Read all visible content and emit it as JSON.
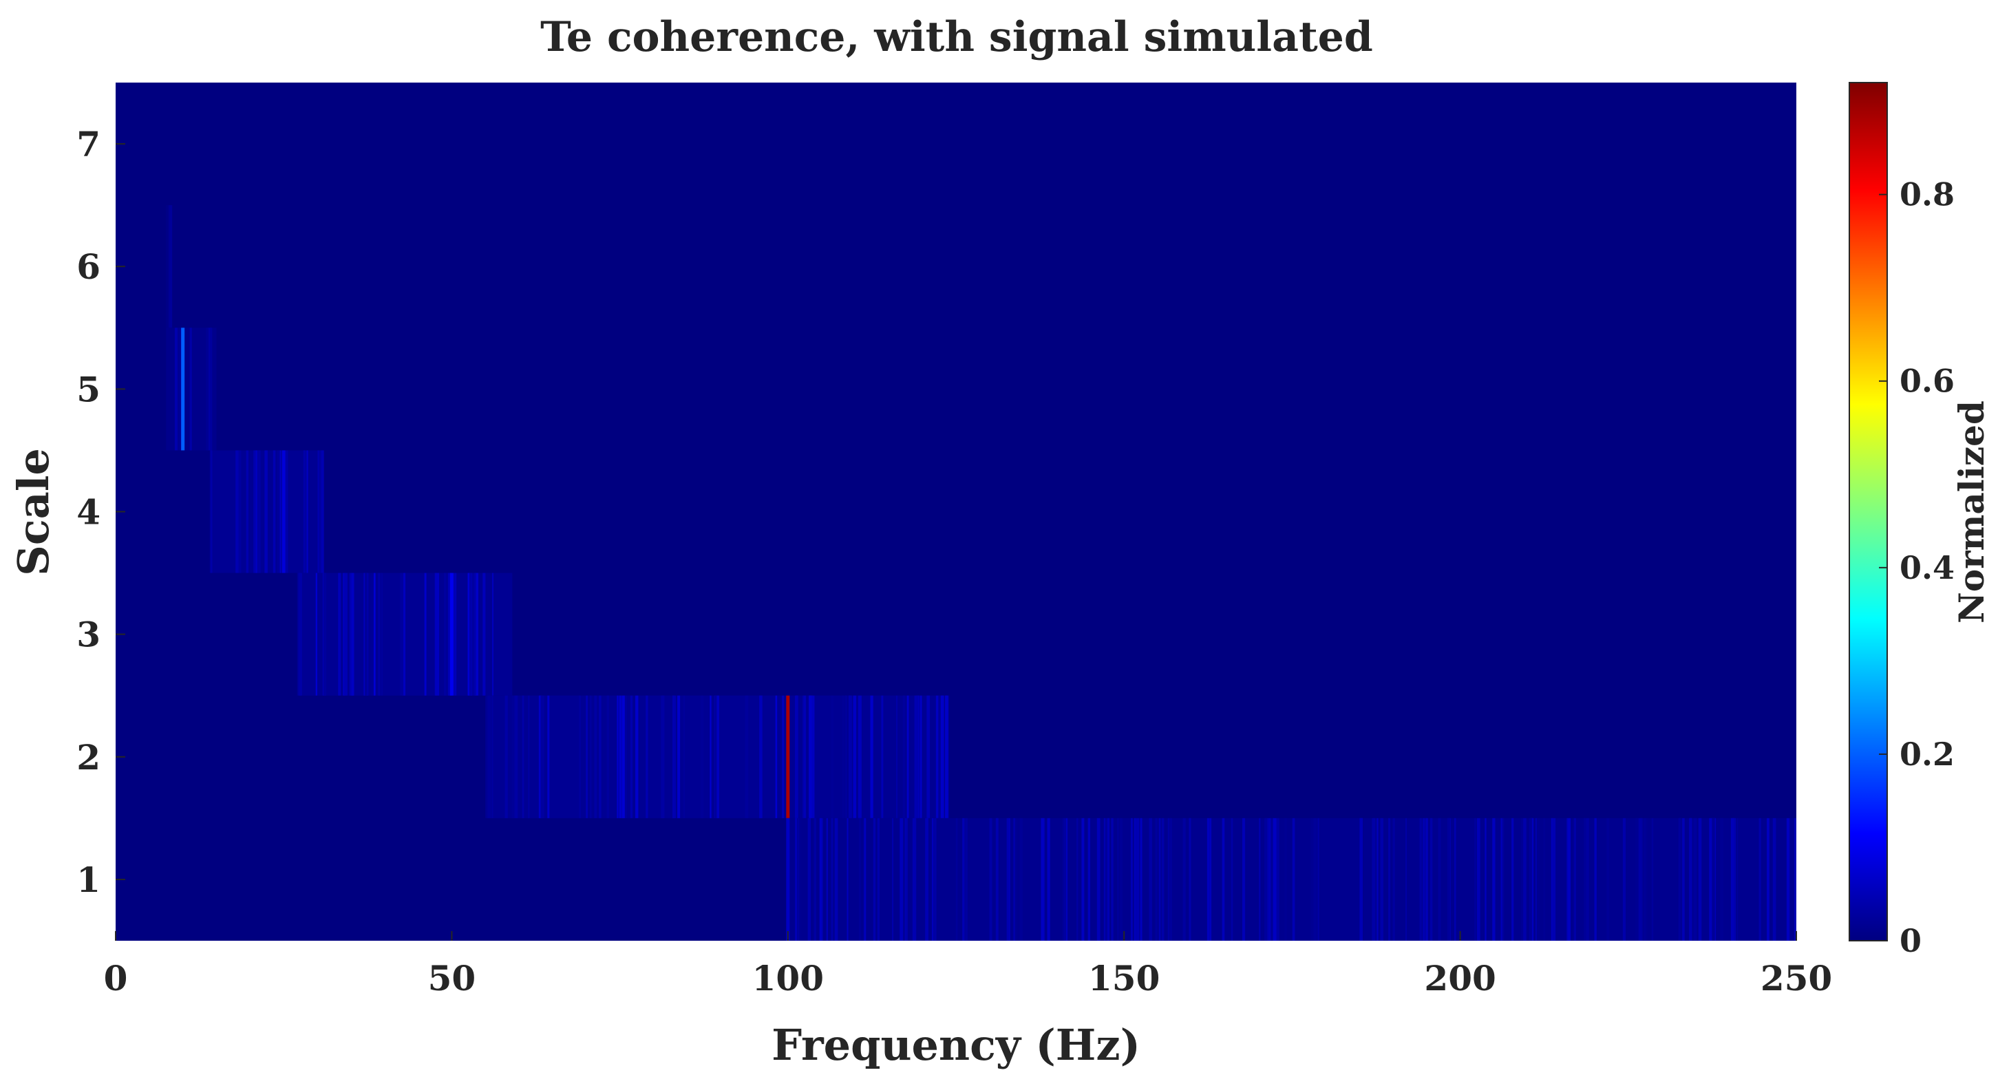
{
  "chart_data": {
    "type": "heatmap",
    "title": "Te coherence, with signal simulated",
    "xlabel": "Frequency (Hz)",
    "ylabel": "Scale",
    "xlim": [
      0,
      250
    ],
    "ylim": [
      0.5,
      7.5
    ],
    "x_ticks": [
      "0",
      "50",
      "100",
      "150",
      "200",
      "250"
    ],
    "y_ticks": [
      "1",
      "2",
      "3",
      "4",
      "5",
      "6",
      "7"
    ],
    "colorbar": {
      "label": "Normalized",
      "colormap": "jet",
      "range": [
        0,
        0.92
      ],
      "ticks": [
        "0",
        "0.2",
        "0.4",
        "0.6",
        "0.8"
      ]
    },
    "background_value": 0.0,
    "bands": [
      {
        "scale": 7,
        "x_range": [
          0,
          250
        ],
        "level": 0.0
      },
      {
        "scale": 6,
        "x_range": [
          7.5,
          8
        ],
        "level": 0.02
      },
      {
        "scale": 5,
        "x_range": [
          7.5,
          15
        ],
        "level": 0.03
      },
      {
        "scale": 4,
        "x_range": [
          14,
          31
        ],
        "level": 0.05
      },
      {
        "scale": 3,
        "x_range": [
          27,
          59
        ],
        "level": 0.05
      },
      {
        "scale": 2,
        "x_range": [
          55,
          124
        ],
        "level": 0.05
      },
      {
        "scale": 1,
        "x_range": [
          100,
          250
        ],
        "level": 0.04
      }
    ],
    "peaks": [
      {
        "x": 10,
        "scale": 5,
        "value": 0.2
      },
      {
        "x": 100,
        "scale": 2,
        "value": 0.88
      },
      {
        "x": 100,
        "scale": 1,
        "value": 0.06
      },
      {
        "x": 25,
        "scale": 4,
        "value": 0.08
      },
      {
        "x": 50,
        "scale": 3,
        "value": 0.1
      }
    ]
  }
}
